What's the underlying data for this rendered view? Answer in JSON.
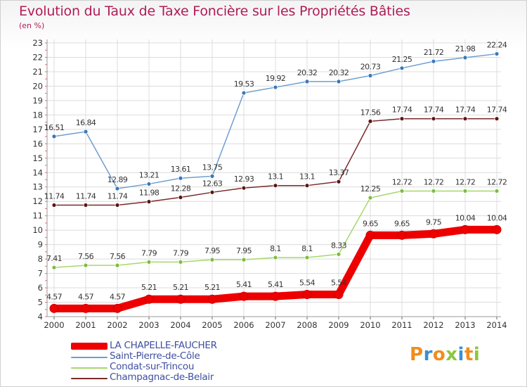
{
  "title": "Evolution du Taux de Taxe Foncière sur les Propriétés Bâties",
  "unit_label": "(en %)",
  "logo": {
    "text": "Proxiti",
    "letter_colors": [
      "#f28c1c",
      "#3b8fd1",
      "#f28c1c",
      "#8cc63f",
      "#3b8fd1",
      "#f28c1c",
      "#8cc63f"
    ]
  },
  "chart_data": {
    "type": "line",
    "x": [
      2000,
      2001,
      2002,
      2003,
      2004,
      2005,
      2006,
      2007,
      2008,
      2009,
      2010,
      2011,
      2012,
      2013,
      2014
    ],
    "ylim": [
      4,
      23
    ],
    "yticks": [
      4,
      5,
      6,
      7,
      8,
      9,
      10,
      11,
      12,
      13,
      14,
      15,
      16,
      17,
      18,
      19,
      20,
      21,
      22,
      23
    ],
    "grid": true,
    "legend_position": "bottom-left",
    "series": [
      {
        "name": "LA CHAPELLE-FAUCHER",
        "color": "#ee0000",
        "marker": "#ee0000",
        "thick": true,
        "values": [
          4.57,
          4.57,
          4.57,
          5.21,
          5.21,
          5.21,
          5.41,
          5.41,
          5.54,
          5.54,
          9.65,
          9.65,
          9.75,
          10.04,
          10.04
        ],
        "labels": [
          "4.57",
          "4.57",
          "4.57",
          "5.21",
          "5.21",
          "5.21",
          "5.41",
          "5.41",
          "5.54",
          "5.54",
          "9.65",
          "9.65",
          "9.75",
          "10.04",
          "10.04"
        ]
      },
      {
        "name": "Saint-Pierre-de-Côle",
        "color": "#6e9fcf",
        "marker": "#3a78b8",
        "thick": false,
        "values": [
          16.51,
          16.84,
          12.89,
          13.21,
          13.61,
          13.75,
          19.53,
          19.92,
          20.32,
          20.32,
          20.73,
          21.25,
          21.72,
          21.98,
          22.24
        ],
        "labels": [
          "16.51",
          "16.84",
          "12.89",
          "13.21",
          "13.61",
          "13.75",
          "19.53",
          "19.92",
          "20.32",
          "20.32",
          "20.73",
          "21.25",
          "21.72",
          "21.98",
          "22.24"
        ]
      },
      {
        "name": "Condat-sur-Trincou",
        "color": "#a6d86a",
        "marker": "#7ebd3c",
        "thick": false,
        "values": [
          7.41,
          7.56,
          7.56,
          7.79,
          7.79,
          7.95,
          7.95,
          8.1,
          8.1,
          8.33,
          12.25,
          12.72,
          12.72,
          12.72,
          12.72
        ],
        "labels": [
          "7.41",
          "7.56",
          "7.56",
          "7.79",
          "7.79",
          "7.95",
          "7.95",
          "8.1",
          "8.1",
          "8.33",
          "12.25",
          "12.72",
          "12.72",
          "12.72",
          "12.72"
        ]
      },
      {
        "name": "Champagnac-de-Belair",
        "color": "#7a2a2a",
        "marker": "#5c1414",
        "thick": false,
        "values": [
          11.74,
          11.74,
          11.74,
          11.98,
          12.28,
          12.63,
          12.93,
          13.1,
          13.1,
          13.37,
          17.56,
          17.74,
          17.74,
          17.74,
          17.74
        ],
        "labels": [
          "11.74",
          "11.74",
          "11.74",
          "11.98",
          "12.28",
          "12.63",
          "12.93",
          "13.1",
          "13.1",
          "13.37",
          "17.56",
          "17.74",
          "17.74",
          "17.74",
          "17.74"
        ]
      }
    ]
  }
}
